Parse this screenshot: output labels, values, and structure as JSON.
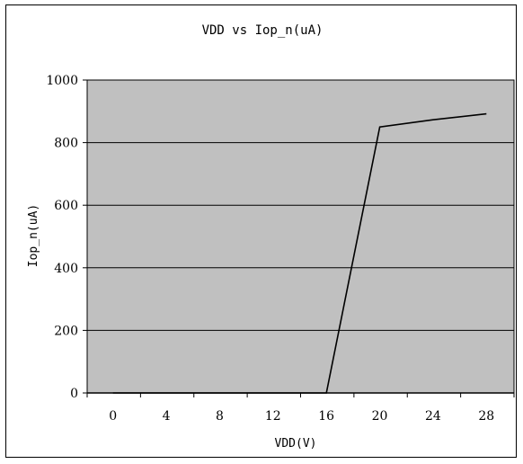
{
  "chart_data": {
    "type": "line",
    "title": "VDD vs Iop_n(uA)",
    "xlabel": "VDD(V)",
    "ylabel": "Iop_n(uA)",
    "categories": [
      "0",
      "4",
      "8",
      "12",
      "16",
      "20",
      "24",
      "28"
    ],
    "x": [
      0,
      4,
      8,
      12,
      16,
      20,
      24,
      28
    ],
    "series": [
      {
        "values": [
          0,
          0,
          0,
          0,
          0,
          850,
          873,
          892
        ]
      }
    ],
    "ylim": [
      0,
      1000
    ],
    "yticks": [
      0,
      200,
      400,
      600,
      800,
      1000
    ],
    "grid": true,
    "legend": "none",
    "colors": {
      "plot_background": "#c0c0c0",
      "line": "#000000",
      "grid": "#000000"
    }
  }
}
